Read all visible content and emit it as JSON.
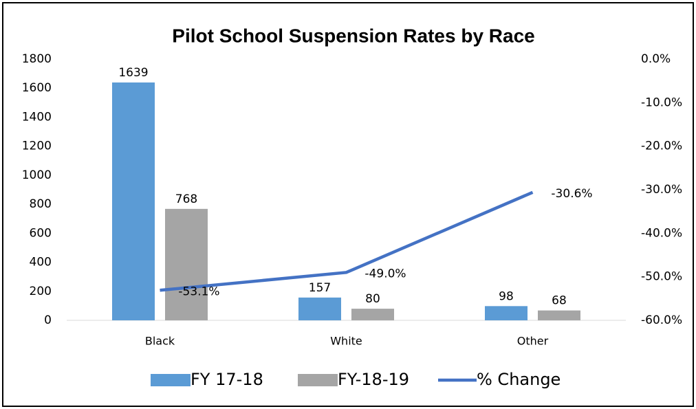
{
  "chart_data": {
    "type": "bar",
    "title": "Pilot School Suspension Rates by Race",
    "categories": [
      "Black",
      "White",
      "Other"
    ],
    "series": [
      {
        "name": "FY 17-18",
        "color": "#5b9bd5",
        "values": [
          1639,
          157,
          98
        ]
      },
      {
        "name": "FY-18-19",
        "color": "#a5a5a5",
        "values": [
          768,
          80,
          68
        ]
      },
      {
        "name": "% Change",
        "color": "#4472c4",
        "type": "line",
        "axis": "y2",
        "values": [
          -53.1,
          -49.0,
          -30.6
        ],
        "value_labels": [
          "-53.1%",
          "-49.0%",
          "-30.6%"
        ]
      }
    ],
    "ylim": [
      0,
      1800
    ],
    "yticks": [
      0,
      200,
      400,
      600,
      800,
      1000,
      1200,
      1400,
      1600,
      1800
    ],
    "y2lim": [
      -60,
      0
    ],
    "y2ticks": [
      {
        "value": 0,
        "label": "0.0%"
      },
      {
        "value": -10,
        "label": "-10.0%"
      },
      {
        "value": -20,
        "label": "-20.0%"
      },
      {
        "value": -30,
        "label": "-30.0%"
      },
      {
        "value": -40,
        "label": "-40.0%"
      },
      {
        "value": -50,
        "label": "-50.0%"
      },
      {
        "value": -60,
        "label": "-60.0%"
      }
    ],
    "legend": "bottom"
  }
}
